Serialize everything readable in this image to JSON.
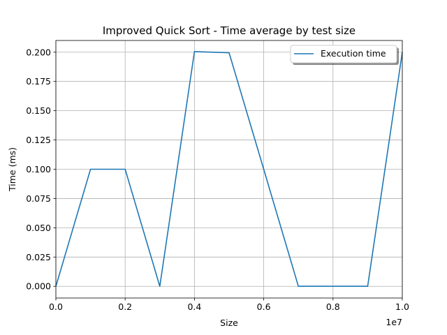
{
  "chart_data": {
    "type": "line",
    "title": "Improved Quick Sort - Time average by test size",
    "xlabel": "Size",
    "ylabel": "Time (ms)",
    "x_offset_label": "1e7",
    "xlim": [
      0,
      10000000
    ],
    "ylim": [
      -0.01,
      0.21
    ],
    "grid": true,
    "legend_position": "top-right",
    "x_ticks": [
      {
        "value": 0,
        "label": "0.0"
      },
      {
        "value": 2000000,
        "label": "0.2"
      },
      {
        "value": 4000000,
        "label": "0.4"
      },
      {
        "value": 6000000,
        "label": "0.6"
      },
      {
        "value": 8000000,
        "label": "0.8"
      },
      {
        "value": 10000000,
        "label": "1.0"
      }
    ],
    "y_ticks": [
      {
        "value": 0.0,
        "label": "0.000"
      },
      {
        "value": 0.025,
        "label": "0.025"
      },
      {
        "value": 0.05,
        "label": "0.050"
      },
      {
        "value": 0.075,
        "label": "0.075"
      },
      {
        "value": 0.1,
        "label": "0.100"
      },
      {
        "value": 0.125,
        "label": "0.125"
      },
      {
        "value": 0.15,
        "label": "0.150"
      },
      {
        "value": 0.175,
        "label": "0.175"
      },
      {
        "value": 0.2,
        "label": "0.200"
      }
    ],
    "series": [
      {
        "name": "Execution time",
        "color": "#1f77b4",
        "x": [
          0,
          1000000,
          2000000,
          3000000,
          4000000,
          5000000,
          6000000,
          7000000,
          8000000,
          9000000,
          10000000
        ],
        "y": [
          0.0,
          0.1,
          0.1,
          0.0,
          0.2005,
          0.1995,
          0.1,
          0.0,
          0.0,
          0.0,
          0.2
        ]
      }
    ]
  }
}
